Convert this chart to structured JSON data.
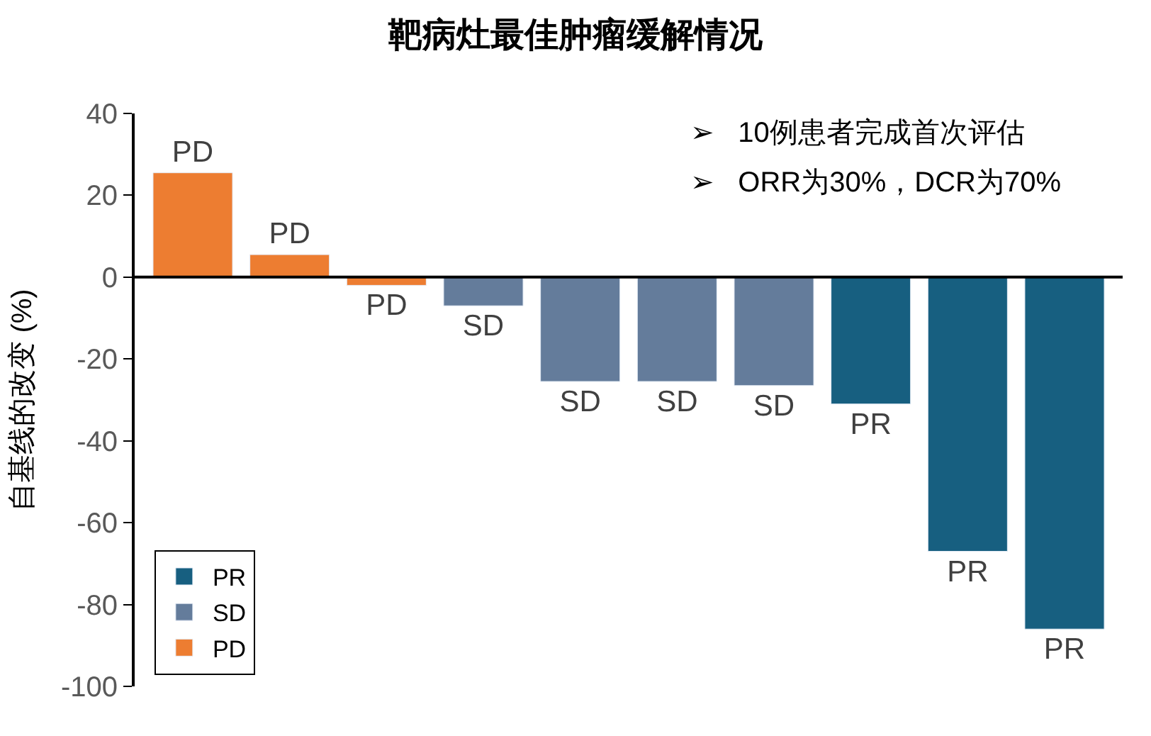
{
  "chart_data": {
    "type": "bar",
    "title": "靶病灶最佳肿瘤缓解情况",
    "ylabel": "自基线的改变 (%)",
    "categories": [
      null,
      null,
      null,
      null,
      null,
      null,
      null,
      null,
      null,
      null
    ],
    "series": [
      {
        "name": "PR",
        "color": "#175f80",
        "values": [
          null,
          null,
          null,
          null,
          null,
          null,
          null,
          -31,
          -67,
          -86
        ],
        "value_labels": [
          null,
          null,
          null,
          null,
          null,
          null,
          null,
          "PR",
          "PR",
          "PR"
        ]
      },
      {
        "name": "SD",
        "color": "#647c9b",
        "values": [
          null,
          null,
          null,
          -7,
          -25.5,
          -25.5,
          -26.5,
          null,
          null,
          null
        ],
        "value_labels": [
          null,
          null,
          null,
          "SD",
          "SD",
          "SD",
          "SD",
          null,
          null,
          null
        ]
      },
      {
        "name": "PD",
        "color": "#ed7d31",
        "values": [
          25.5,
          5.5,
          -2,
          null,
          null,
          null,
          null,
          null,
          null,
          null
        ],
        "value_labels": [
          "PD",
          "PD",
          "PD",
          null,
          null,
          null,
          null,
          null,
          null,
          null
        ]
      }
    ],
    "ylim": [
      -100,
      40
    ],
    "yticks": [
      -100,
      -80,
      -60,
      -40,
      -20,
      0,
      20,
      40
    ],
    "annotations": [
      "➢   10例患者完成首次评估",
      "➢   ORR为30%，DCR为70%"
    ],
    "ref_lines": [
      {
        "axis": "y",
        "value": 0,
        "color": "#000000"
      }
    ],
    "legend": "bottom left",
    "tick_labels": "y"
  }
}
